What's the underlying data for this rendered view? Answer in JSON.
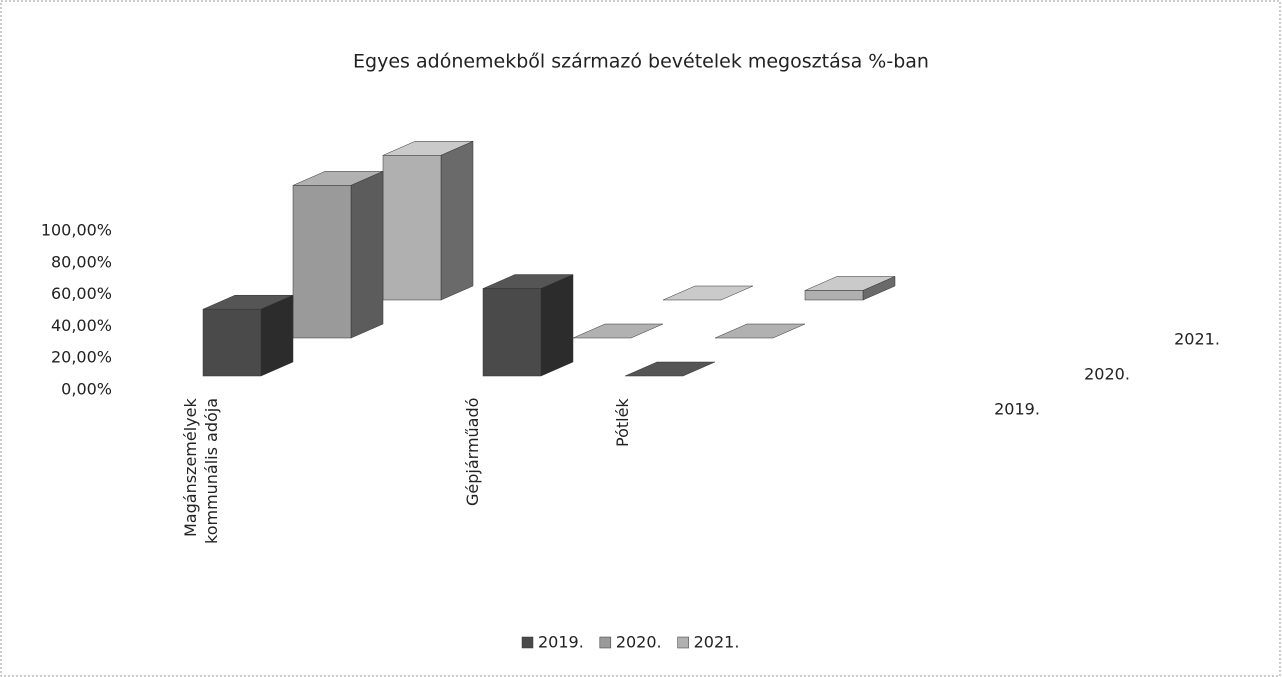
{
  "chart_data": {
    "type": "bar3d",
    "title": "Egyes adónemekből származó bevételek megosztása %-ban",
    "categories": [
      "Magánszemélyek kommunális adója",
      "Gépjárműadó",
      "Pótlék"
    ],
    "series": [
      {
        "name": "2019.",
        "color": "#4a4a4a",
        "values": [
          42,
          55,
          0
        ]
      },
      {
        "name": "2020.",
        "color": "#9a9a9a",
        "values": [
          96,
          0,
          0
        ]
      },
      {
        "name": "2021.",
        "color": "#b0b0b0",
        "values": [
          91,
          0,
          6
        ]
      }
    ],
    "ylim": [
      0,
      100
    ],
    "yticks": [
      {
        "value": 0,
        "label": "0,00%"
      },
      {
        "value": 20,
        "label": "20,00%"
      },
      {
        "value": 40,
        "label": "40,00%"
      },
      {
        "value": 60,
        "label": "60,00%"
      },
      {
        "value": 80,
        "label": "80,00%"
      },
      {
        "value": 100,
        "label": "100,00%"
      }
    ],
    "legend": "bottom"
  }
}
